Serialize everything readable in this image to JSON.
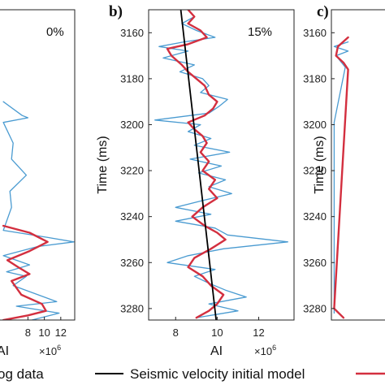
{
  "chart_data": [
    {
      "panel_label": "",
      "annotation": "0%",
      "type": "line",
      "xlabel": "AI",
      "x_multiplier": "×10",
      "x_multiplier_exp": "6",
      "ylabel": "",
      "xlim": [
        4.4,
        13.7
      ],
      "ylim": [
        3150,
        3285
      ],
      "y_reversed": true,
      "xticks": [
        8,
        10,
        12
      ],
      "xtick_labels": [
        "8",
        "10",
        "12"
      ],
      "yticks": [],
      "ytick_labels": [],
      "series": [
        {
          "legend_ref": "log",
          "color": "#4a9bd1",
          "points": [
            [
              5.0,
              3190
            ],
            [
              7.3,
              3196
            ],
            [
              8.0,
              3197
            ],
            [
              5.0,
              3199
            ],
            [
              6.2,
              3208
            ],
            [
              6.0,
              3215
            ],
            [
              7.8,
              3222
            ],
            [
              5.8,
              3229
            ],
            [
              6.0,
              3236
            ],
            [
              5.0,
              3246
            ],
            [
              10.3,
              3249
            ],
            [
              13.6,
              3251
            ],
            [
              9.2,
              3253
            ],
            [
              5.0,
              3257
            ],
            [
              8.2,
              3261
            ],
            [
              5.4,
              3264
            ],
            [
              7.8,
              3266
            ],
            [
              6.2,
              3270
            ],
            [
              11.5,
              3277
            ],
            [
              6.6,
              3279
            ],
            [
              11.8,
              3282
            ],
            [
              8.5,
              3285
            ]
          ]
        },
        {
          "legend_ref": "",
          "color": "#d32f3f",
          "points": [
            [
              5.0,
              3244
            ],
            [
              8.2,
              3247
            ],
            [
              10.4,
              3251
            ],
            [
              8.2,
              3255
            ],
            [
              5.5,
              3259
            ],
            [
              6.8,
              3262
            ],
            [
              8.2,
              3265
            ],
            [
              6.0,
              3268
            ],
            [
              7.2,
              3274
            ],
            [
              9.7,
              3278
            ],
            [
              10.2,
              3281
            ],
            [
              8.0,
              3283
            ],
            [
              5.0,
              3285
            ]
          ]
        }
      ]
    },
    {
      "panel_label": "b)",
      "annotation": "15%",
      "type": "line",
      "xlabel": "AI",
      "x_multiplier": "×10",
      "x_multiplier_exp": "6",
      "ylabel": "Time (ms)",
      "xlim": [
        6.7,
        13.7
      ],
      "ylim": [
        3150,
        3285
      ],
      "y_reversed": true,
      "xticks": [
        8,
        10,
        12
      ],
      "xtick_labels": [
        "8",
        "10",
        "12"
      ],
      "yticks": [
        3160,
        3180,
        3200,
        3220,
        3240,
        3260,
        3280
      ],
      "ytick_labels": [
        "3160",
        "3180",
        "3200",
        "3220",
        "3240",
        "3260",
        "3280"
      ],
      "series": [
        {
          "legend_ref": "log",
          "color": "#4a9bd1",
          "points": [
            [
              8.6,
              3150
            ],
            [
              8.9,
              3153
            ],
            [
              8.3,
              3156
            ],
            [
              9.0,
              3159
            ],
            [
              9.9,
              3162
            ],
            [
              8.4,
              3164
            ],
            [
              7.2,
              3166
            ],
            [
              8.6,
              3168
            ],
            [
              7.4,
              3171
            ],
            [
              8.9,
              3174
            ],
            [
              8.2,
              3177
            ],
            [
              9.3,
              3180
            ],
            [
              9.6,
              3183
            ],
            [
              9.2,
              3186
            ],
            [
              10.5,
              3189
            ],
            [
              10.1,
              3192
            ],
            [
              9.6,
              3195
            ],
            [
              7.0,
              3198
            ],
            [
              9.2,
              3200
            ],
            [
              8.6,
              3203
            ],
            [
              9.7,
              3206
            ],
            [
              8.9,
              3209
            ],
            [
              10.6,
              3212
            ],
            [
              8.7,
              3215
            ],
            [
              10.2,
              3218
            ],
            [
              9.1,
              3221
            ],
            [
              10.4,
              3224
            ],
            [
              9.6,
              3227
            ],
            [
              10.7,
              3230
            ],
            [
              9.3,
              3233
            ],
            [
              8.0,
              3236
            ],
            [
              9.7,
              3239
            ],
            [
              8.0,
              3242
            ],
            [
              9.9,
              3245
            ],
            [
              10.5,
              3248
            ],
            [
              13.4,
              3251
            ],
            [
              10.3,
              3254
            ],
            [
              8.6,
              3257
            ],
            [
              7.6,
              3260
            ],
            [
              9.9,
              3263
            ],
            [
              8.9,
              3266
            ],
            [
              9.6,
              3269
            ],
            [
              10.4,
              3272
            ],
            [
              11.4,
              3275
            ],
            [
              9.6,
              3278
            ],
            [
              11.0,
              3281
            ],
            [
              9.0,
              3284
            ]
          ]
        },
        {
          "legend_ref": "",
          "color": "#d32f3f",
          "points": [
            [
              8.6,
              3150
            ],
            [
              8.9,
              3153
            ],
            [
              8.6,
              3156
            ],
            [
              9.2,
              3159
            ],
            [
              9.5,
              3162
            ],
            [
              8.6,
              3165
            ],
            [
              7.6,
              3167
            ],
            [
              7.8,
              3170
            ],
            [
              8.3,
              3174
            ],
            [
              8.6,
              3177
            ],
            [
              9.0,
              3180
            ],
            [
              9.4,
              3183
            ],
            [
              9.6,
              3187
            ],
            [
              10.0,
              3190
            ],
            [
              9.8,
              3193
            ],
            [
              9.4,
              3196
            ],
            [
              8.6,
              3199
            ],
            [
              8.9,
              3202
            ],
            [
              9.3,
              3205
            ],
            [
              9.5,
              3208
            ],
            [
              9.2,
              3212
            ],
            [
              9.6,
              3216
            ],
            [
              9.3,
              3220
            ],
            [
              9.9,
              3224
            ],
            [
              9.6,
              3228
            ],
            [
              10.0,
              3232
            ],
            [
              9.3,
              3236
            ],
            [
              8.8,
              3240
            ],
            [
              9.4,
              3244
            ],
            [
              10.0,
              3247
            ],
            [
              10.4,
              3250
            ],
            [
              9.7,
              3254
            ],
            [
              8.9,
              3258
            ],
            [
              8.6,
              3262
            ],
            [
              9.3,
              3266
            ],
            [
              9.7,
              3270
            ],
            [
              10.3,
              3274
            ],
            [
              10.0,
              3278
            ],
            [
              9.6,
              3281
            ],
            [
              9.0,
              3284
            ]
          ]
        },
        {
          "legend_ref": "Seismic velocity initial model",
          "color": "#000000",
          "points": [
            [
              8.25,
              3150
            ],
            [
              9.95,
              3285
            ]
          ]
        }
      ]
    },
    {
      "panel_label": "c)",
      "annotation": "",
      "type": "line",
      "xlabel": "",
      "ylabel": "Time (ms)",
      "xlim": [
        6.7,
        13.7
      ],
      "ylim": [
        3150,
        3285
      ],
      "y_reversed": true,
      "xticks": [],
      "xtick_labels": [],
      "yticks": [
        3160,
        3180,
        3200,
        3220,
        3240,
        3260,
        3280
      ],
      "ytick_labels": [
        "3160",
        "3180",
        "3200",
        "3220",
        "3240",
        "3260",
        "3280"
      ],
      "series": [
        {
          "legend_ref": "log",
          "color": "#4a9bd1",
          "points": [
            [
              8.5,
              3164
            ],
            [
              7.0,
              3166
            ],
            [
              8.5,
              3168
            ],
            [
              7.2,
              3170
            ],
            [
              8.2,
              3175
            ],
            [
              7.0,
              3199
            ],
            [
              7.0,
              3282
            ]
          ]
        },
        {
          "legend_ref": "",
          "color": "#d32f3f",
          "points": [
            [
              8.5,
              3162
            ],
            [
              7.4,
              3166
            ],
            [
              7.2,
              3170
            ],
            [
              8.0,
              3173
            ],
            [
              8.5,
              3176
            ],
            [
              7.0,
              3280
            ],
            [
              8.0,
              3284
            ]
          ]
        }
      ]
    }
  ],
  "legend": [
    {
      "label": "og data",
      "color": "#4a9bd1",
      "has_line": false
    },
    {
      "label": "Seismic velocity initial model",
      "color": "#000000",
      "has_line": true
    },
    {
      "label": "",
      "color": "#d32f3f",
      "has_line": true
    }
  ]
}
